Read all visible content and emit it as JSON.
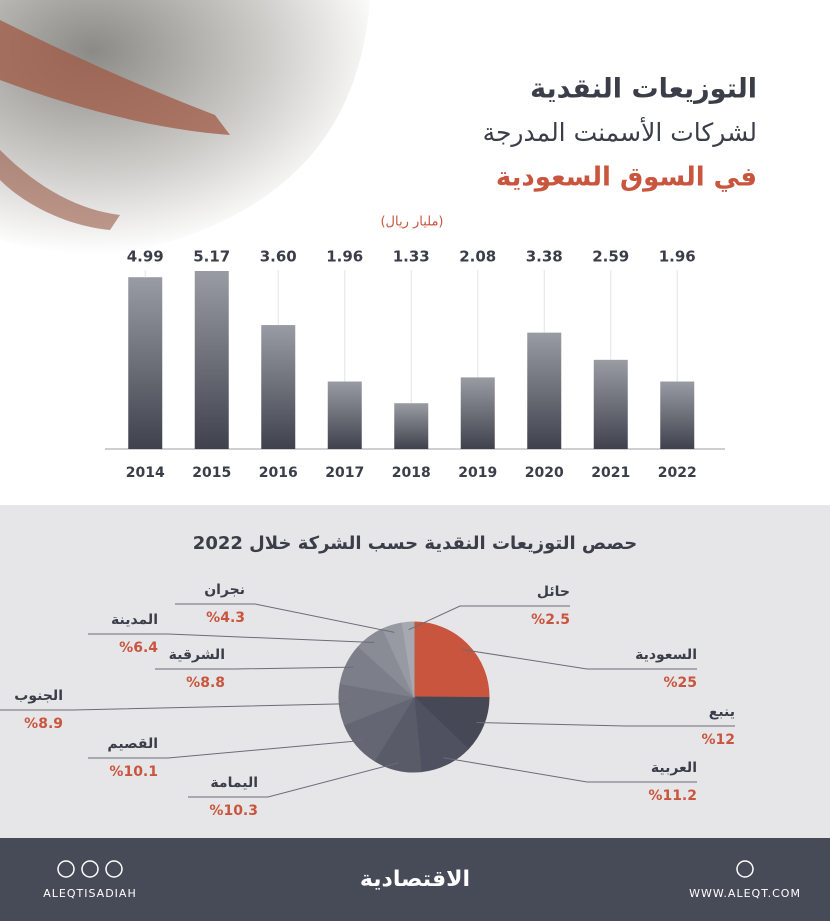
{
  "chart_data": [
    {
      "type": "bar",
      "title": [
        "التوزيعات النقدية",
        "لشركات الأسمنت المدرجة",
        "في السوق السعودية"
      ],
      "unit": "(مليار ريال)",
      "categories": [
        "2014",
        "2015",
        "2016",
        "2017",
        "2018",
        "2019",
        "2020",
        "2021",
        "2022"
      ],
      "values": [
        4.99,
        5.17,
        3.6,
        1.96,
        1.33,
        2.08,
        3.38,
        2.59,
        1.96
      ],
      "value_labels": [
        "4.99",
        "5.17",
        "3.60",
        "1.96",
        "1.33",
        "2.08",
        "3.38",
        "2.59",
        "1.96"
      ],
      "color": "#4a4c58"
    },
    {
      "type": "pie",
      "title": "حصص التوزيعات النقدية حسب الشركة خلال 2022",
      "categories": [
        "السعودية",
        "ينبع",
        "العربية",
        "اليمامة",
        "القصيم",
        "الجنوب",
        "الشرقية",
        "المدينة",
        "نجران",
        "حائل"
      ],
      "values": [
        25,
        12,
        11.2,
        10.3,
        10.1,
        8.9,
        8.8,
        6.4,
        4.3,
        2.5
      ],
      "value_labels": [
        "%25",
        "%12",
        "%11.2",
        "%10.3",
        "%10.1",
        "%8.9",
        "%8.8",
        "%6.4",
        "%4.3",
        "%2.5"
      ],
      "colors": [
        "#c9553e",
        "#464855",
        "#4f5160",
        "#595b69",
        "#646673",
        "#70727e",
        "#7c7e89",
        "#898b95",
        "#979aa3",
        "#a7a9b1"
      ]
    }
  ],
  "footer": {
    "social": "ALEQTISADIAH",
    "brand": "الاقتصادية",
    "website": "WWW.ALEQT.COM"
  }
}
